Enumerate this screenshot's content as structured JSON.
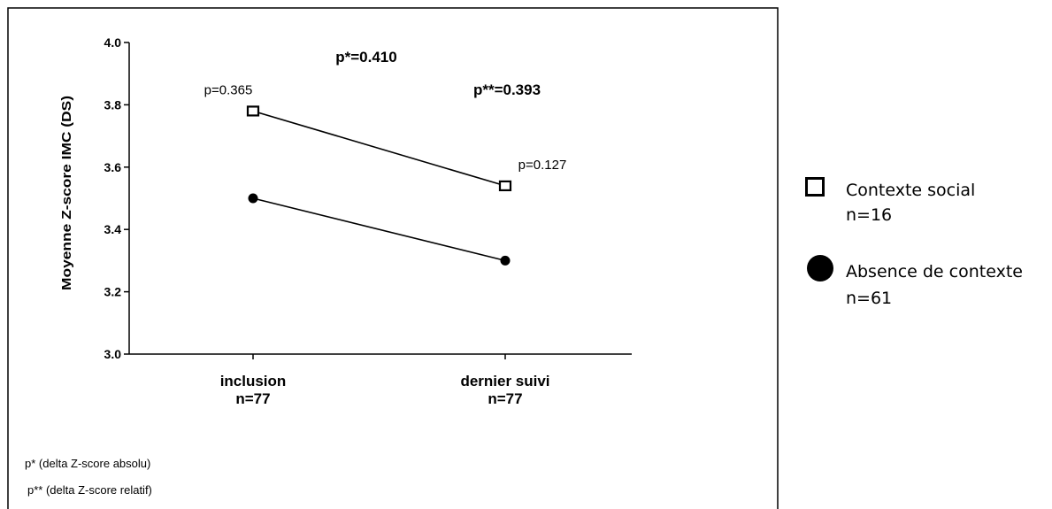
{
  "chart_data": {
    "type": "line",
    "categories": [
      {
        "label": "inclusion",
        "n": "n=77"
      },
      {
        "label": "dernier suivi",
        "n": "n=77"
      }
    ],
    "series": [
      {
        "marker": "square",
        "values": [
          3.78,
          3.54
        ],
        "color": "#000000",
        "point_labels": [
          "p=0.365",
          "p=0.127"
        ]
      },
      {
        "marker": "circle",
        "values": [
          3.5,
          3.3
        ],
        "color": "#000000"
      }
    ],
    "ylabel": "Moyenne Z-score IMC (DS)",
    "ylim": [
      3.0,
      4.0
    ],
    "yticks": [
      "3.0",
      "3.2",
      "3.4",
      "3.6",
      "3.8",
      "4.0"
    ],
    "annotations": [
      "p*=0.410",
      "p**=0.393"
    ],
    "grid": false
  },
  "legend": {
    "items": [
      {
        "marker": "square",
        "label": "Contexte social",
        "n": "n=16"
      },
      {
        "marker": "circle",
        "label": "Absence de contexte",
        "n": "n=61"
      }
    ]
  },
  "footnotes": [
    "p* (delta Z-score absolu)",
    "p** (delta Z-score relatif)"
  ]
}
